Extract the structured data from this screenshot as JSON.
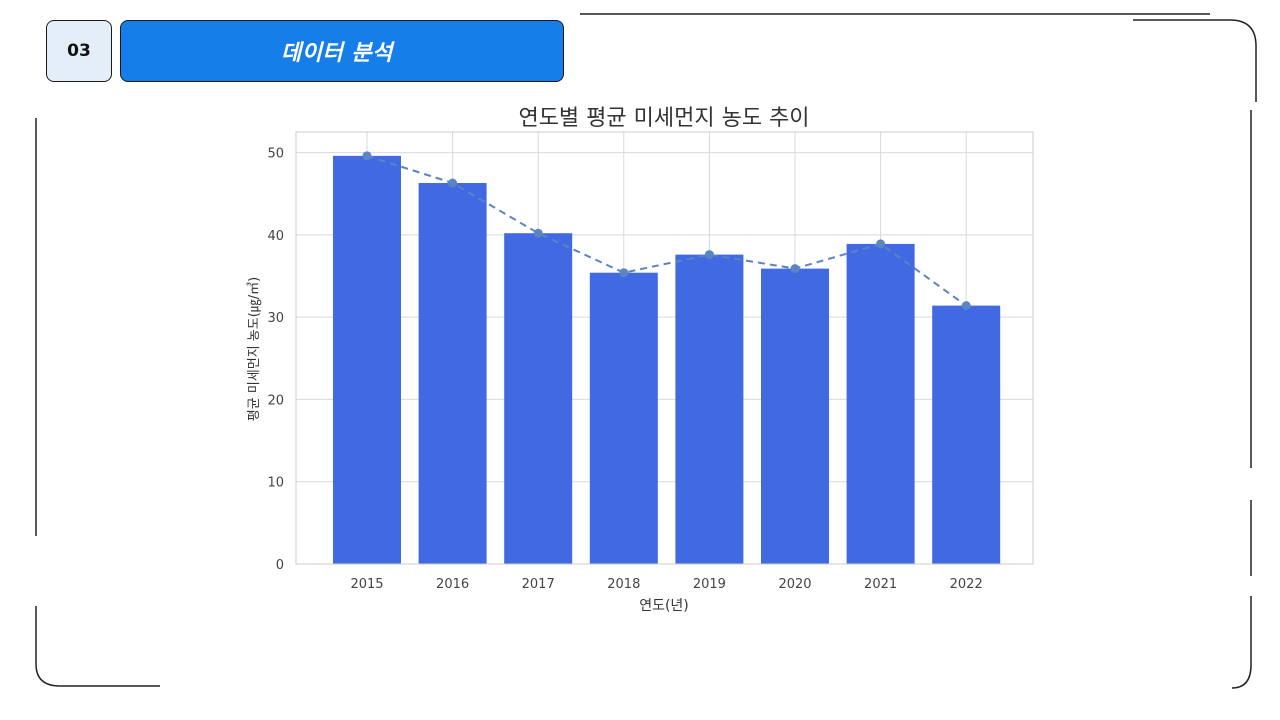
{
  "header": {
    "section_number": "03",
    "section_title": "데이터 분석"
  },
  "colors": {
    "accent": "#167ee8",
    "bar": "#4169e1",
    "trend_line": "#5b84c4",
    "grid": "#d9d9d9"
  },
  "chart_data": {
    "type": "bar",
    "title": "연도별 평균 미세먼지 농도 추이",
    "xlabel": "연도(년)",
    "ylabel": "평균 미세먼지 농도(㎍/㎥)",
    "categories": [
      "2015",
      "2016",
      "2017",
      "2018",
      "2019",
      "2020",
      "2021",
      "2022"
    ],
    "series": [
      {
        "values": [
          49.6,
          46.3,
          40.2,
          35.4,
          37.6,
          35.9,
          38.9,
          31.4
        ]
      }
    ],
    "overlay_line": {
      "style": "dashed",
      "markers": true,
      "values": [
        49.6,
        46.3,
        40.2,
        35.4,
        37.6,
        35.9,
        38.9,
        31.4
      ]
    },
    "ylim": [
      0,
      52.5
    ],
    "yticks": [
      0,
      10,
      20,
      30,
      40,
      50
    ],
    "grid": true
  }
}
